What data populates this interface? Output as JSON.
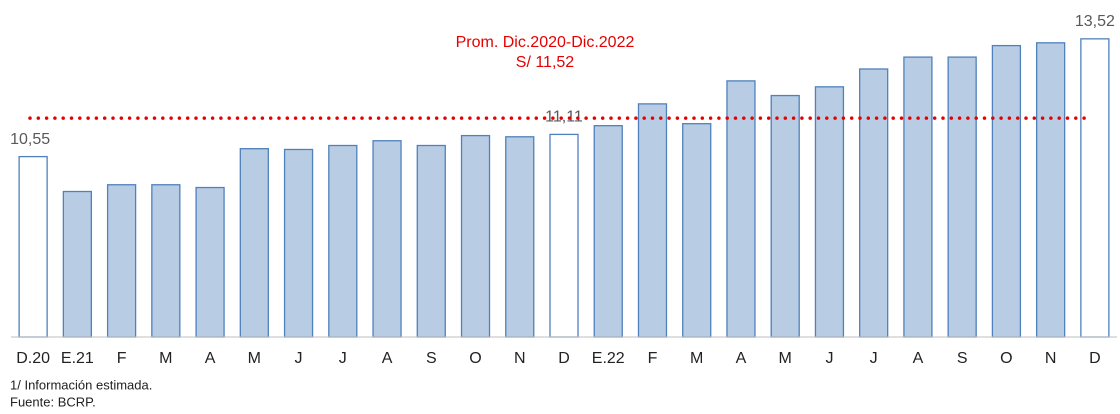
{
  "chart_data": {
    "type": "bar",
    "categories": [
      "D.20",
      "E.21",
      "F",
      "M",
      "A",
      "M",
      "J",
      "J",
      "A",
      "S",
      "O",
      "N",
      "D",
      "E.22",
      "F",
      "M",
      "A",
      "M",
      "J",
      "J",
      "A",
      "S",
      "O",
      "N",
      "D"
    ],
    "values": [
      10.55,
      9.67,
      9.84,
      9.84,
      9.77,
      10.75,
      10.73,
      10.83,
      10.95,
      10.83,
      11.08,
      11.05,
      11.11,
      11.33,
      11.88,
      11.38,
      12.46,
      12.09,
      12.31,
      12.76,
      13.06,
      13.06,
      13.35,
      13.42,
      13.52
    ],
    "value_labels": [
      "10,55",
      null,
      null,
      null,
      null,
      null,
      null,
      null,
      null,
      null,
      null,
      null,
      "11,11",
      null,
      null,
      null,
      null,
      null,
      null,
      null,
      null,
      null,
      null,
      null,
      "13,52"
    ],
    "colors": [
      "#ffffff",
      "#b8cce4",
      "#b8cce4",
      "#b8cce4",
      "#b8cce4",
      "#b8cce4",
      "#b8cce4",
      "#b8cce4",
      "#b8cce4",
      "#b8cce4",
      "#b8cce4",
      "#b8cce4",
      "#ffffff",
      "#b8cce4",
      "#b8cce4",
      "#b8cce4",
      "#b8cce4",
      "#b8cce4",
      "#b8cce4",
      "#b8cce4",
      "#b8cce4",
      "#b8cce4",
      "#b8cce4",
      "#b8cce4",
      "#ffffff"
    ],
    "edge_color": "#4f81bd",
    "ylim": [
      6,
      14.5
    ],
    "reference_line": {
      "value": 11.52,
      "color": "#e60000",
      "labels": [
        "Prom. Dic.2020-Dic.2022",
        "S/ 11,52"
      ]
    },
    "notes": [
      "1/ Información estimada.",
      "Fuente: BCRP."
    ]
  }
}
